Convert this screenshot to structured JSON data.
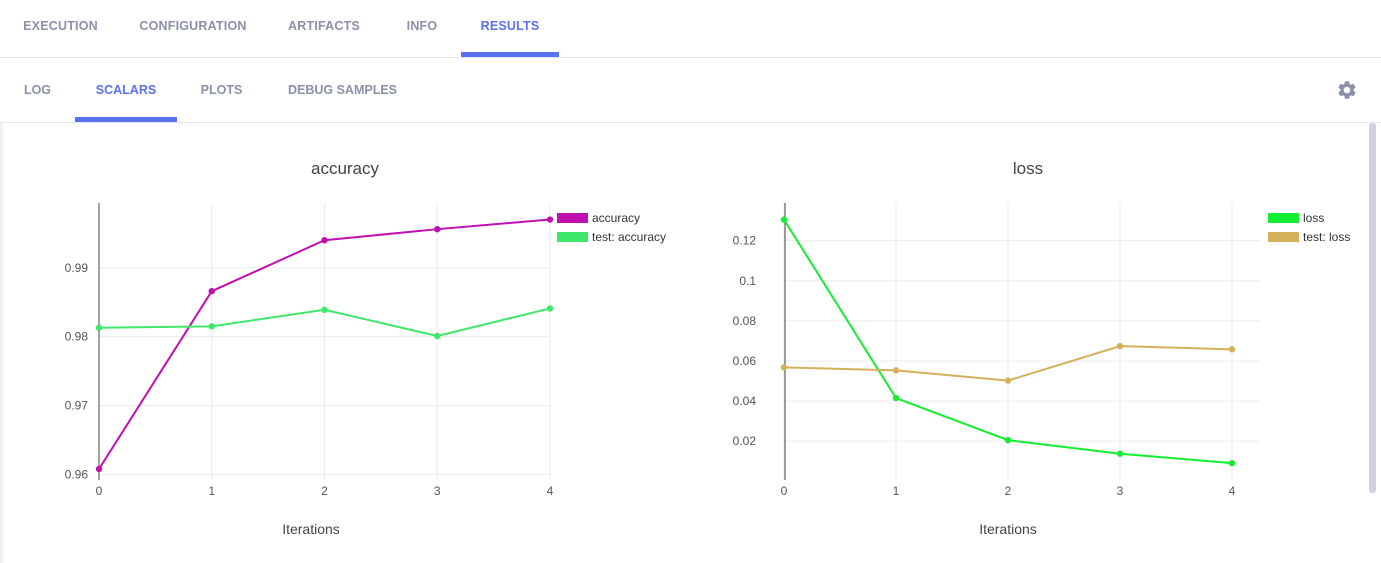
{
  "main_tabs": [
    {
      "label": "EXECUTION",
      "active": false
    },
    {
      "label": "CONFIGURATION",
      "active": false
    },
    {
      "label": "ARTIFACTS",
      "active": false
    },
    {
      "label": "INFO",
      "active": false
    },
    {
      "label": "RESULTS",
      "active": true
    }
  ],
  "sub_tabs": [
    {
      "label": "LOG",
      "active": false
    },
    {
      "label": "SCALARS",
      "active": true
    },
    {
      "label": "PLOTS",
      "active": false
    },
    {
      "label": "DEBUG SAMPLES",
      "active": false
    }
  ],
  "settings_icon": "gear-icon",
  "colors": {
    "accent": "#5a71f0",
    "tab_inactive": "#8a90a8"
  },
  "chart_data": [
    {
      "type": "line",
      "title": "accuracy",
      "xlabel": "Iterations",
      "ylabel": "",
      "x": [
        0,
        1,
        2,
        3,
        4
      ],
      "xlim": [
        0,
        4
      ],
      "ylim": [
        0.9592,
        0.9994
      ],
      "yticks": [
        0.96,
        0.97,
        0.98,
        0.99
      ],
      "ytick_labels": [
        "0.96",
        "0.97",
        "0.98",
        "0.99"
      ],
      "grid": true,
      "legend_position": "top-right",
      "series": [
        {
          "name": "accuracy",
          "color": "#c10fb0",
          "values": [
            0.9608,
            0.9866,
            0.994,
            0.9956,
            0.997
          ]
        },
        {
          "name": "test: accuracy",
          "color": "#3fe86a",
          "values": [
            0.9813,
            0.9815,
            0.9839,
            0.9801,
            0.9841
          ]
        }
      ]
    },
    {
      "type": "line",
      "title": "loss",
      "xlabel": "Iterations",
      "ylabel": "",
      "x": [
        0,
        1,
        2,
        3,
        4
      ],
      "xlim": [
        0,
        4
      ],
      "ylim": [
        0.0006,
        0.1388
      ],
      "yticks": [
        0.02,
        0.04,
        0.06,
        0.08,
        0.1,
        0.12
      ],
      "ytick_labels": [
        "0.02",
        "0.04",
        "0.06",
        "0.08",
        "0.1",
        "0.12"
      ],
      "grid": true,
      "legend_position": "top-right",
      "series": [
        {
          "name": "loss",
          "color": "#13ee33",
          "values": [
            0.1305,
            0.0415,
            0.0205,
            0.0137,
            0.009
          ]
        },
        {
          "name": "test: loss",
          "color": "#d4b05a",
          "values": [
            0.0568,
            0.0553,
            0.0502,
            0.0674,
            0.0658
          ]
        }
      ]
    }
  ]
}
